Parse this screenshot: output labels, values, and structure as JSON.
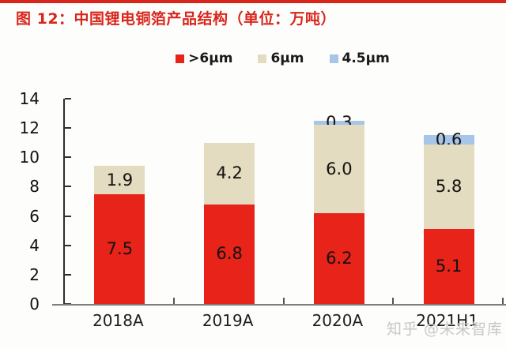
{
  "page": {
    "title": "图 12：中国锂电铜箔产品结构（单位：万吨）",
    "watermark": "知乎 @未来智库"
  },
  "colors": {
    "accent_red": "#d9261c",
    "axis": "#2e2e2e",
    "baseline": "#7e7e7e",
    "watermark_gray": "#c7c7c7"
  },
  "chart_data": {
    "type": "bar",
    "stacked": true,
    "title": "中国锂电铜箔产品结构",
    "unit": "万吨",
    "categories": [
      "2018A",
      "2019A",
      "2020A",
      "2021H1"
    ],
    "series": [
      {
        "name": ">6μm",
        "color": "#e8231a",
        "values": [
          7.5,
          6.8,
          6.2,
          5.1
        ]
      },
      {
        "name": "6μm",
        "color": "#e3dcc1",
        "values": [
          1.9,
          4.2,
          6.0,
          5.8
        ]
      },
      {
        "name": "4.5μm",
        "color": "#a6c5e8",
        "values": [
          null,
          null,
          0.3,
          0.6
        ]
      }
    ],
    "totals": [
      9.4,
      11.0,
      12.5,
      11.5
    ],
    "ylim": [
      0,
      14
    ],
    "yticks": [
      0,
      2,
      4,
      6,
      8,
      10,
      12,
      14
    ],
    "value_labels": true,
    "legend_position": "top",
    "grid": false
  }
}
